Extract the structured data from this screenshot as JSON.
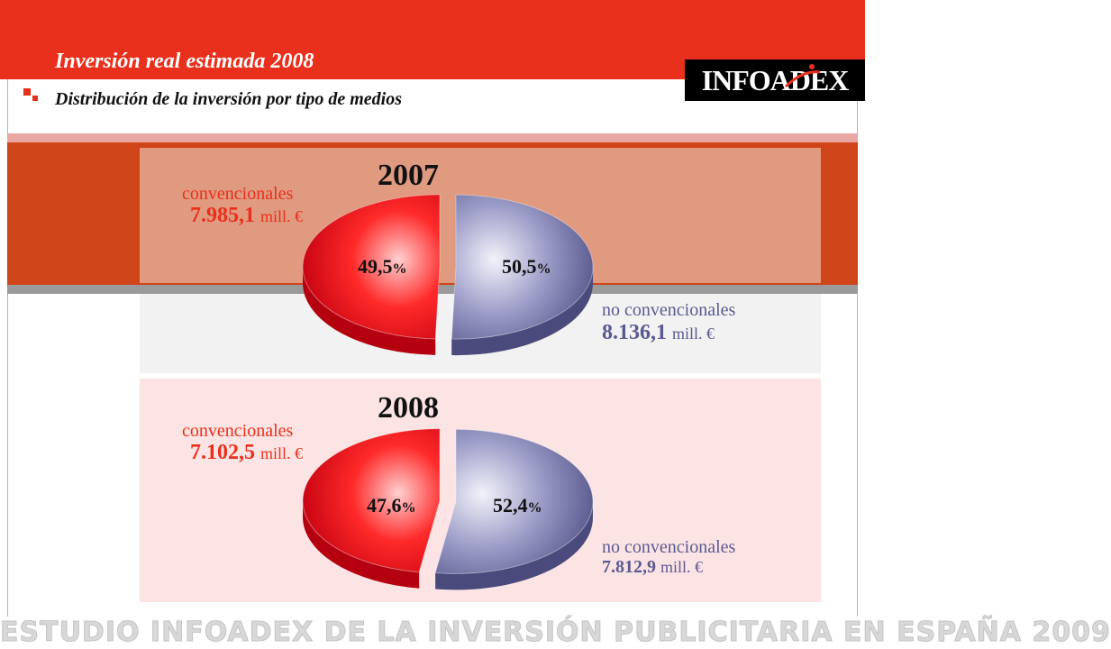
{
  "header": {
    "title": "Inversión real estimada 2008",
    "subtitle": "Distribución de la inversión por tipo de medios",
    "logo_text": "INFOADEX"
  },
  "colors": {
    "brand_red": "#e9301c",
    "slice_red": "#e8101a",
    "slice_blue": "#7f80b4",
    "label_blue": "#5a5a92"
  },
  "footer": {
    "text": "ESTUDIO INFOADEX DE LA INVERSIÓN PUBLICITARIA EN ESPAÑA 2009"
  },
  "chart_data": [
    {
      "type": "pie",
      "title": "2007",
      "slices": [
        {
          "name": "convencionales",
          "pct": 49.5,
          "pct_label": "49,5",
          "value_label": "7.985,1",
          "unit": "mill. €"
        },
        {
          "name": "no convencionales",
          "pct": 50.5,
          "pct_label": "50,5",
          "value_label": "8.136,1",
          "unit": "mill. €"
        }
      ]
    },
    {
      "type": "pie",
      "title": "2008",
      "slices": [
        {
          "name": "convencionales",
          "pct": 47.6,
          "pct_label": "47,6",
          "value_label": "7.102,5",
          "unit": "mill. €"
        },
        {
          "name": "no convencionales",
          "pct": 52.4,
          "pct_label": "52,4",
          "value_label": "7.812,9",
          "unit": "mill. €"
        }
      ]
    }
  ]
}
